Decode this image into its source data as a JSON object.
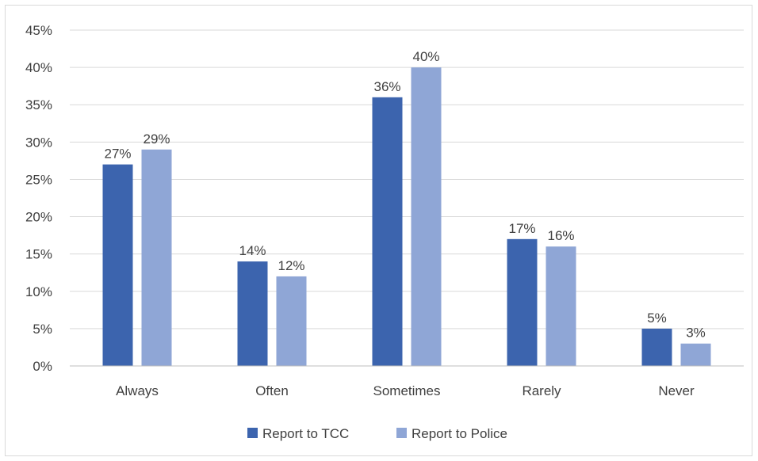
{
  "chart_data": {
    "type": "bar",
    "categories": [
      "Always",
      "Often",
      "Sometimes",
      "Rarely",
      "Never"
    ],
    "series": [
      {
        "name": "Report to TCC",
        "values": [
          27,
          14,
          36,
          17,
          5
        ],
        "color": "#3c64ae"
      },
      {
        "name": "Report to Police",
        "values": [
          29,
          12,
          40,
          16,
          3
        ],
        "color": "#8fa6d6"
      }
    ],
    "y_tick_labels": [
      "0%",
      "5%",
      "10%",
      "15%",
      "20%",
      "25%",
      "30%",
      "35%",
      "40%",
      "45%"
    ],
    "ylim": [
      0,
      45
    ],
    "ystep": 5,
    "value_suffix": "%",
    "grid": true,
    "legend_position": "bottom",
    "colors": {
      "gridline": "#d9d9d9",
      "axis": "#bfbfbf",
      "text": "#404040"
    }
  }
}
